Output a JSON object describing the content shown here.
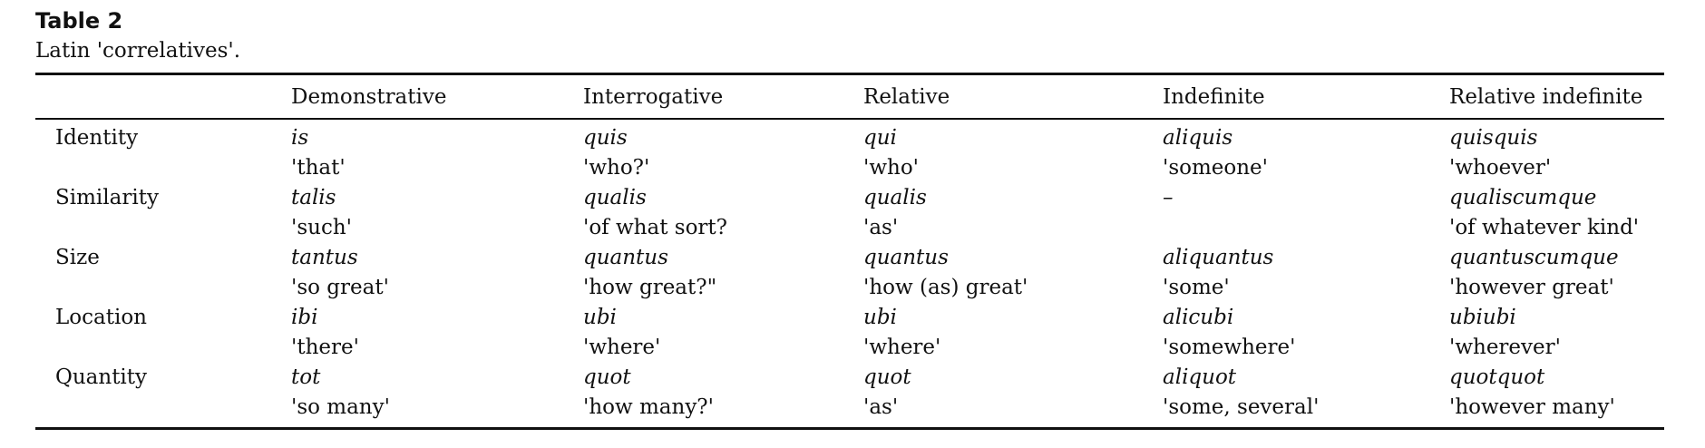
{
  "title": "Table 2",
  "caption": "Latin 'correlatives'.",
  "table": {
    "columns": [
      "Demonstrative",
      "Interrogative",
      "Relative",
      "Indefinite",
      "Relative indefinite"
    ],
    "rows": [
      {
        "label": "Identity",
        "cells": [
          {
            "latin": "is",
            "gloss": "'that'"
          },
          {
            "latin": "quis",
            "gloss": "'who?'"
          },
          {
            "latin": "qui",
            "gloss": "'who'"
          },
          {
            "latin": "aliquis",
            "gloss": "'someone'"
          },
          {
            "latin": "quisquis",
            "gloss": "'whoever'"
          }
        ]
      },
      {
        "label": "Similarity",
        "cells": [
          {
            "latin": "talis",
            "gloss": "'such'"
          },
          {
            "latin": "qualis",
            "gloss": "'of what sort?"
          },
          {
            "latin": "qualis",
            "gloss": "'as'"
          },
          {
            "latin": "–"
          },
          {
            "latin": "qualiscumque",
            "gloss": "'of whatever kind'"
          }
        ]
      },
      {
        "label": "Size",
        "cells": [
          {
            "latin": "tantus",
            "gloss": "'so great'"
          },
          {
            "latin": "quantus",
            "gloss": "'how great?\""
          },
          {
            "latin": "quantus",
            "gloss": "'how (as) great'"
          },
          {
            "latin": "aliquantus",
            "gloss": "'some'"
          },
          {
            "latin": "quantuscumque",
            "gloss": "'however great'"
          }
        ]
      },
      {
        "label": "Location",
        "cells": [
          {
            "latin": "ibi",
            "gloss": "'there'"
          },
          {
            "latin": "ubi",
            "gloss": "'where'"
          },
          {
            "latin": "ubi",
            "gloss": "'where'"
          },
          {
            "latin": "alicubi",
            "gloss": "'somewhere'"
          },
          {
            "latin": "ubiubi",
            "gloss": "'wherever'"
          }
        ]
      },
      {
        "label": "Quantity",
        "cells": [
          {
            "latin": "tot",
            "gloss": "'so many'"
          },
          {
            "latin": "quot",
            "gloss": "'how many?'"
          },
          {
            "latin": "quot",
            "gloss": "'as'"
          },
          {
            "latin": "aliquot",
            "gloss": "'some, several'"
          },
          {
            "latin": "quotquot",
            "gloss": "'however many'"
          }
        ]
      }
    ]
  }
}
